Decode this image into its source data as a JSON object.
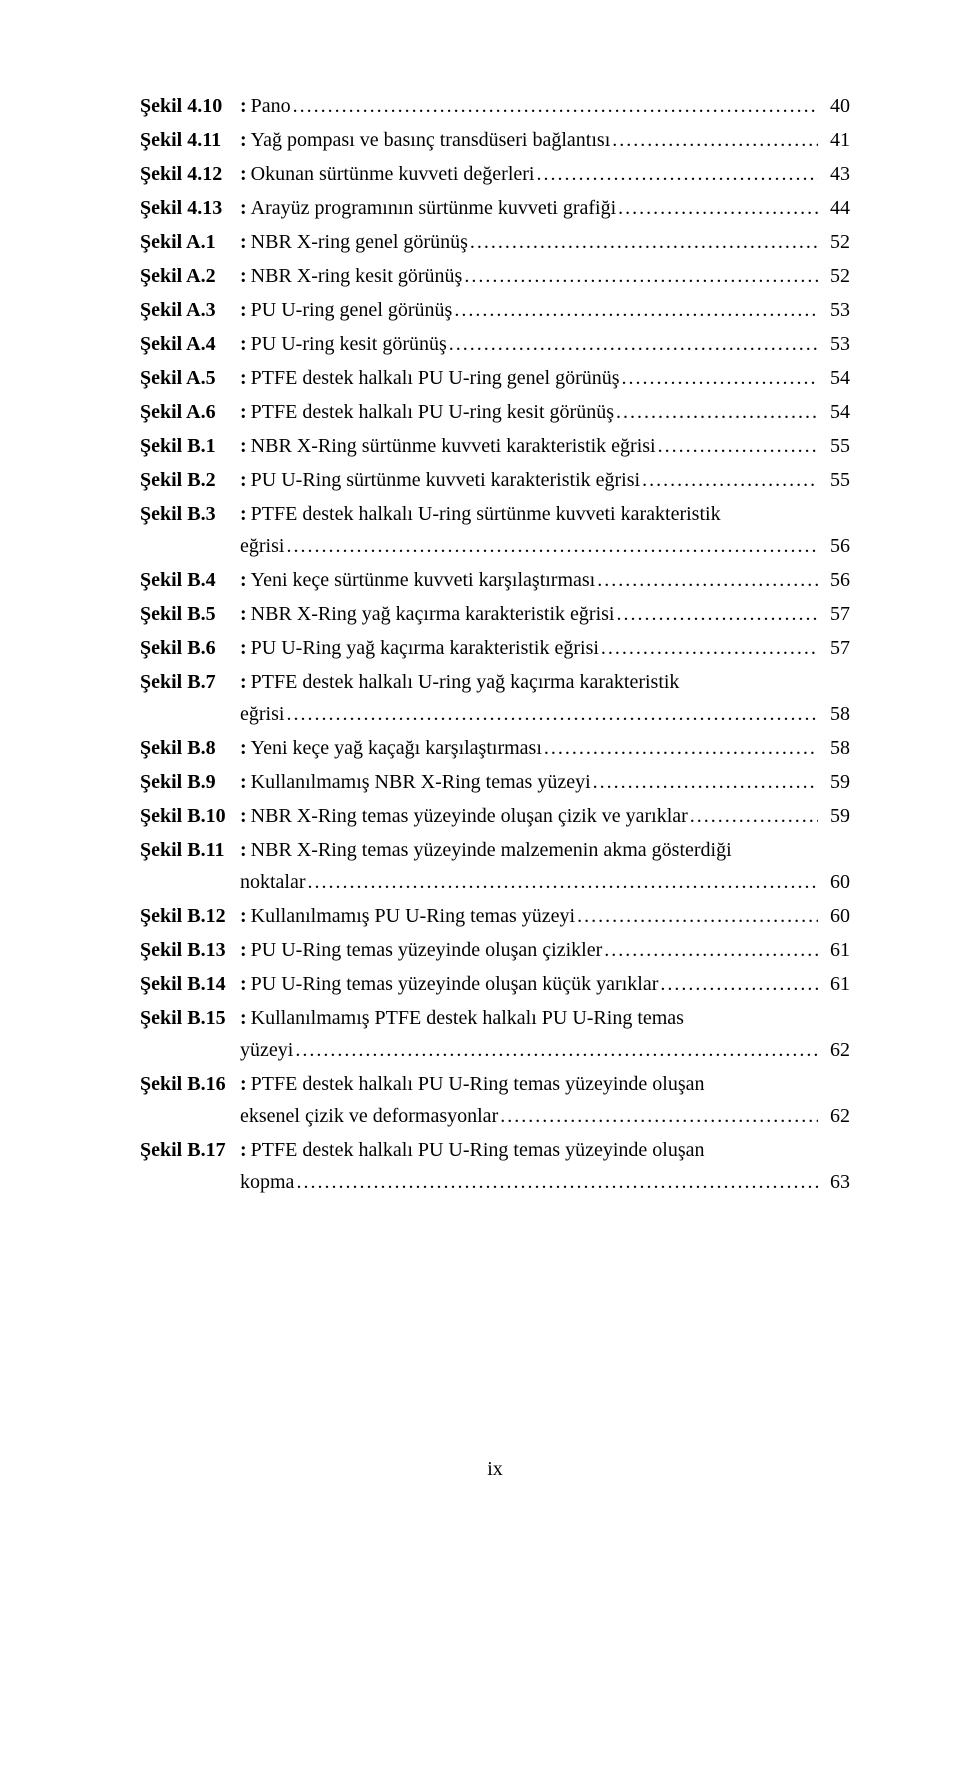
{
  "entries": [
    {
      "label": "Şekil 4.10",
      "desc": "Pano",
      "cont": "",
      "page": "40"
    },
    {
      "label": "Şekil 4.11",
      "desc": "Yağ pompası ve basınç transdüseri bağlantısı",
      "cont": "",
      "page": "41"
    },
    {
      "label": "Şekil 4.12",
      "desc": "Okunan sürtünme kuvveti değerleri",
      "cont": "",
      "page": "43"
    },
    {
      "label": "Şekil 4.13",
      "desc": "Arayüz programının sürtünme kuvveti grafiği",
      "cont": "",
      "page": "44"
    },
    {
      "label": "Şekil A.1",
      "desc": "NBR X-ring genel görünüş",
      "cont": "",
      "page": "52"
    },
    {
      "label": "Şekil A.2",
      "desc": "NBR X-ring kesit görünüş",
      "cont": "",
      "page": "52"
    },
    {
      "label": "Şekil A.3",
      "desc": "PU U-ring genel görünüş",
      "cont": "",
      "page": "53"
    },
    {
      "label": "Şekil A.4",
      "desc": "PU U-ring kesit görünüş",
      "cont": "",
      "page": "53"
    },
    {
      "label": "Şekil A.5",
      "desc": "PTFE destek halkalı PU U-ring genel görünüş",
      "cont": "",
      "page": "54"
    },
    {
      "label": "Şekil A.6",
      "desc": "PTFE destek halkalı PU U-ring kesit görünüş",
      "cont": "",
      "page": "54"
    },
    {
      "label": "Şekil B.1",
      "desc": "NBR X-Ring sürtünme kuvveti karakteristik eğrisi",
      "cont": "",
      "page": "55"
    },
    {
      "label": "Şekil B.2",
      "desc": "PU U-Ring sürtünme kuvveti karakteristik eğrisi",
      "cont": "",
      "page": "55"
    },
    {
      "label": "Şekil B.3",
      "desc": "PTFE destek halkalı U-ring sürtünme kuvveti karakteristik",
      "cont": "eğrisi",
      "page": "56"
    },
    {
      "label": "Şekil B.4",
      "desc": "Yeni keçe sürtünme kuvveti karşılaştırması",
      "cont": "",
      "page": "56"
    },
    {
      "label": "Şekil B.5",
      "desc": "NBR X-Ring yağ kaçırma karakteristik eğrisi",
      "cont": "",
      "page": "57"
    },
    {
      "label": "Şekil B.6",
      "desc": "PU U-Ring yağ kaçırma karakteristik eğrisi",
      "cont": "",
      "page": "57"
    },
    {
      "label": "Şekil B.7",
      "desc": "PTFE destek halkalı U-ring yağ kaçırma karakteristik",
      "cont": "eğrisi",
      "page": "58"
    },
    {
      "label": "Şekil B.8",
      "desc": "Yeni keçe yağ kaçağı karşılaştırması",
      "cont": "",
      "page": "58"
    },
    {
      "label": "Şekil B.9",
      "desc": "Kullanılmamış NBR X-Ring temas yüzeyi",
      "cont": "",
      "page": "59"
    },
    {
      "label": "Şekil B.10",
      "desc": "NBR X-Ring temas yüzeyinde oluşan çizik ve yarıklar",
      "cont": "",
      "page": "59"
    },
    {
      "label": "Şekil B.11",
      "desc": "NBR X-Ring temas yüzeyinde malzemenin akma gösterdiği",
      "cont": "noktalar",
      "page": "60"
    },
    {
      "label": "Şekil B.12",
      "desc": "Kullanılmamış PU U-Ring temas yüzeyi",
      "cont": "",
      "page": "60"
    },
    {
      "label": "Şekil B.13",
      "desc": "PU U-Ring temas yüzeyinde oluşan çizikler",
      "cont": "",
      "page": "61"
    },
    {
      "label": "Şekil B.14",
      "desc": "PU U-Ring temas yüzeyinde oluşan küçük yarıklar",
      "cont": "",
      "page": "61"
    },
    {
      "label": "Şekil B.15",
      "desc": "Kullanılmamış PTFE destek halkalı PU U-Ring temas",
      "cont": "yüzeyi",
      "page": "62"
    },
    {
      "label": "Şekil B.16",
      "desc": "PTFE destek halkalı PU U-Ring temas yüzeyinde oluşan",
      "cont": "eksenel çizik ve deformasyonlar",
      "page": "62"
    },
    {
      "label": "Şekil B.17",
      "desc": "PTFE destek halkalı PU U-Ring temas yüzeyinde oluşan",
      "cont": "kopma",
      "page": "63"
    }
  ],
  "footer": "ix"
}
